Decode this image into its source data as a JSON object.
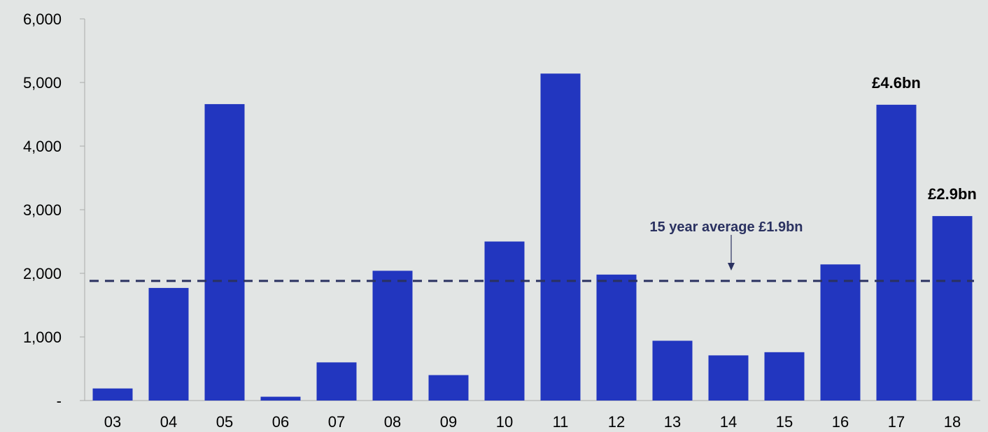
{
  "chart_data": {
    "type": "bar",
    "categories": [
      "03",
      "04",
      "05",
      "06",
      "07",
      "08",
      "09",
      "10",
      "11",
      "12",
      "13",
      "14",
      "15",
      "16",
      "17",
      "18"
    ],
    "values": [
      190,
      1770,
      4660,
      60,
      600,
      2040,
      400,
      2500,
      5140,
      1980,
      940,
      710,
      760,
      2140,
      4650,
      2900
    ],
    "ylim": [
      0,
      6000
    ],
    "yticks": [
      {
        "value": 0,
        "label": "-"
      },
      {
        "value": 1000,
        "label": "1,000"
      },
      {
        "value": 2000,
        "label": "2,000"
      },
      {
        "value": 3000,
        "label": "3,000"
      },
      {
        "value": 4000,
        "label": "4,000"
      },
      {
        "value": 5000,
        "label": "5,000"
      },
      {
        "value": 6000,
        "label": "6,000"
      }
    ],
    "grid": false,
    "bar_color": "#2236bf",
    "reference_line": {
      "value": 1880,
      "label": "15 year average £1.9bn",
      "color": "#2a3160",
      "style": "dashed"
    },
    "data_labels": [
      {
        "category": "17",
        "text": "£4.6bn"
      },
      {
        "category": "18",
        "text": "£2.9bn"
      }
    ]
  }
}
